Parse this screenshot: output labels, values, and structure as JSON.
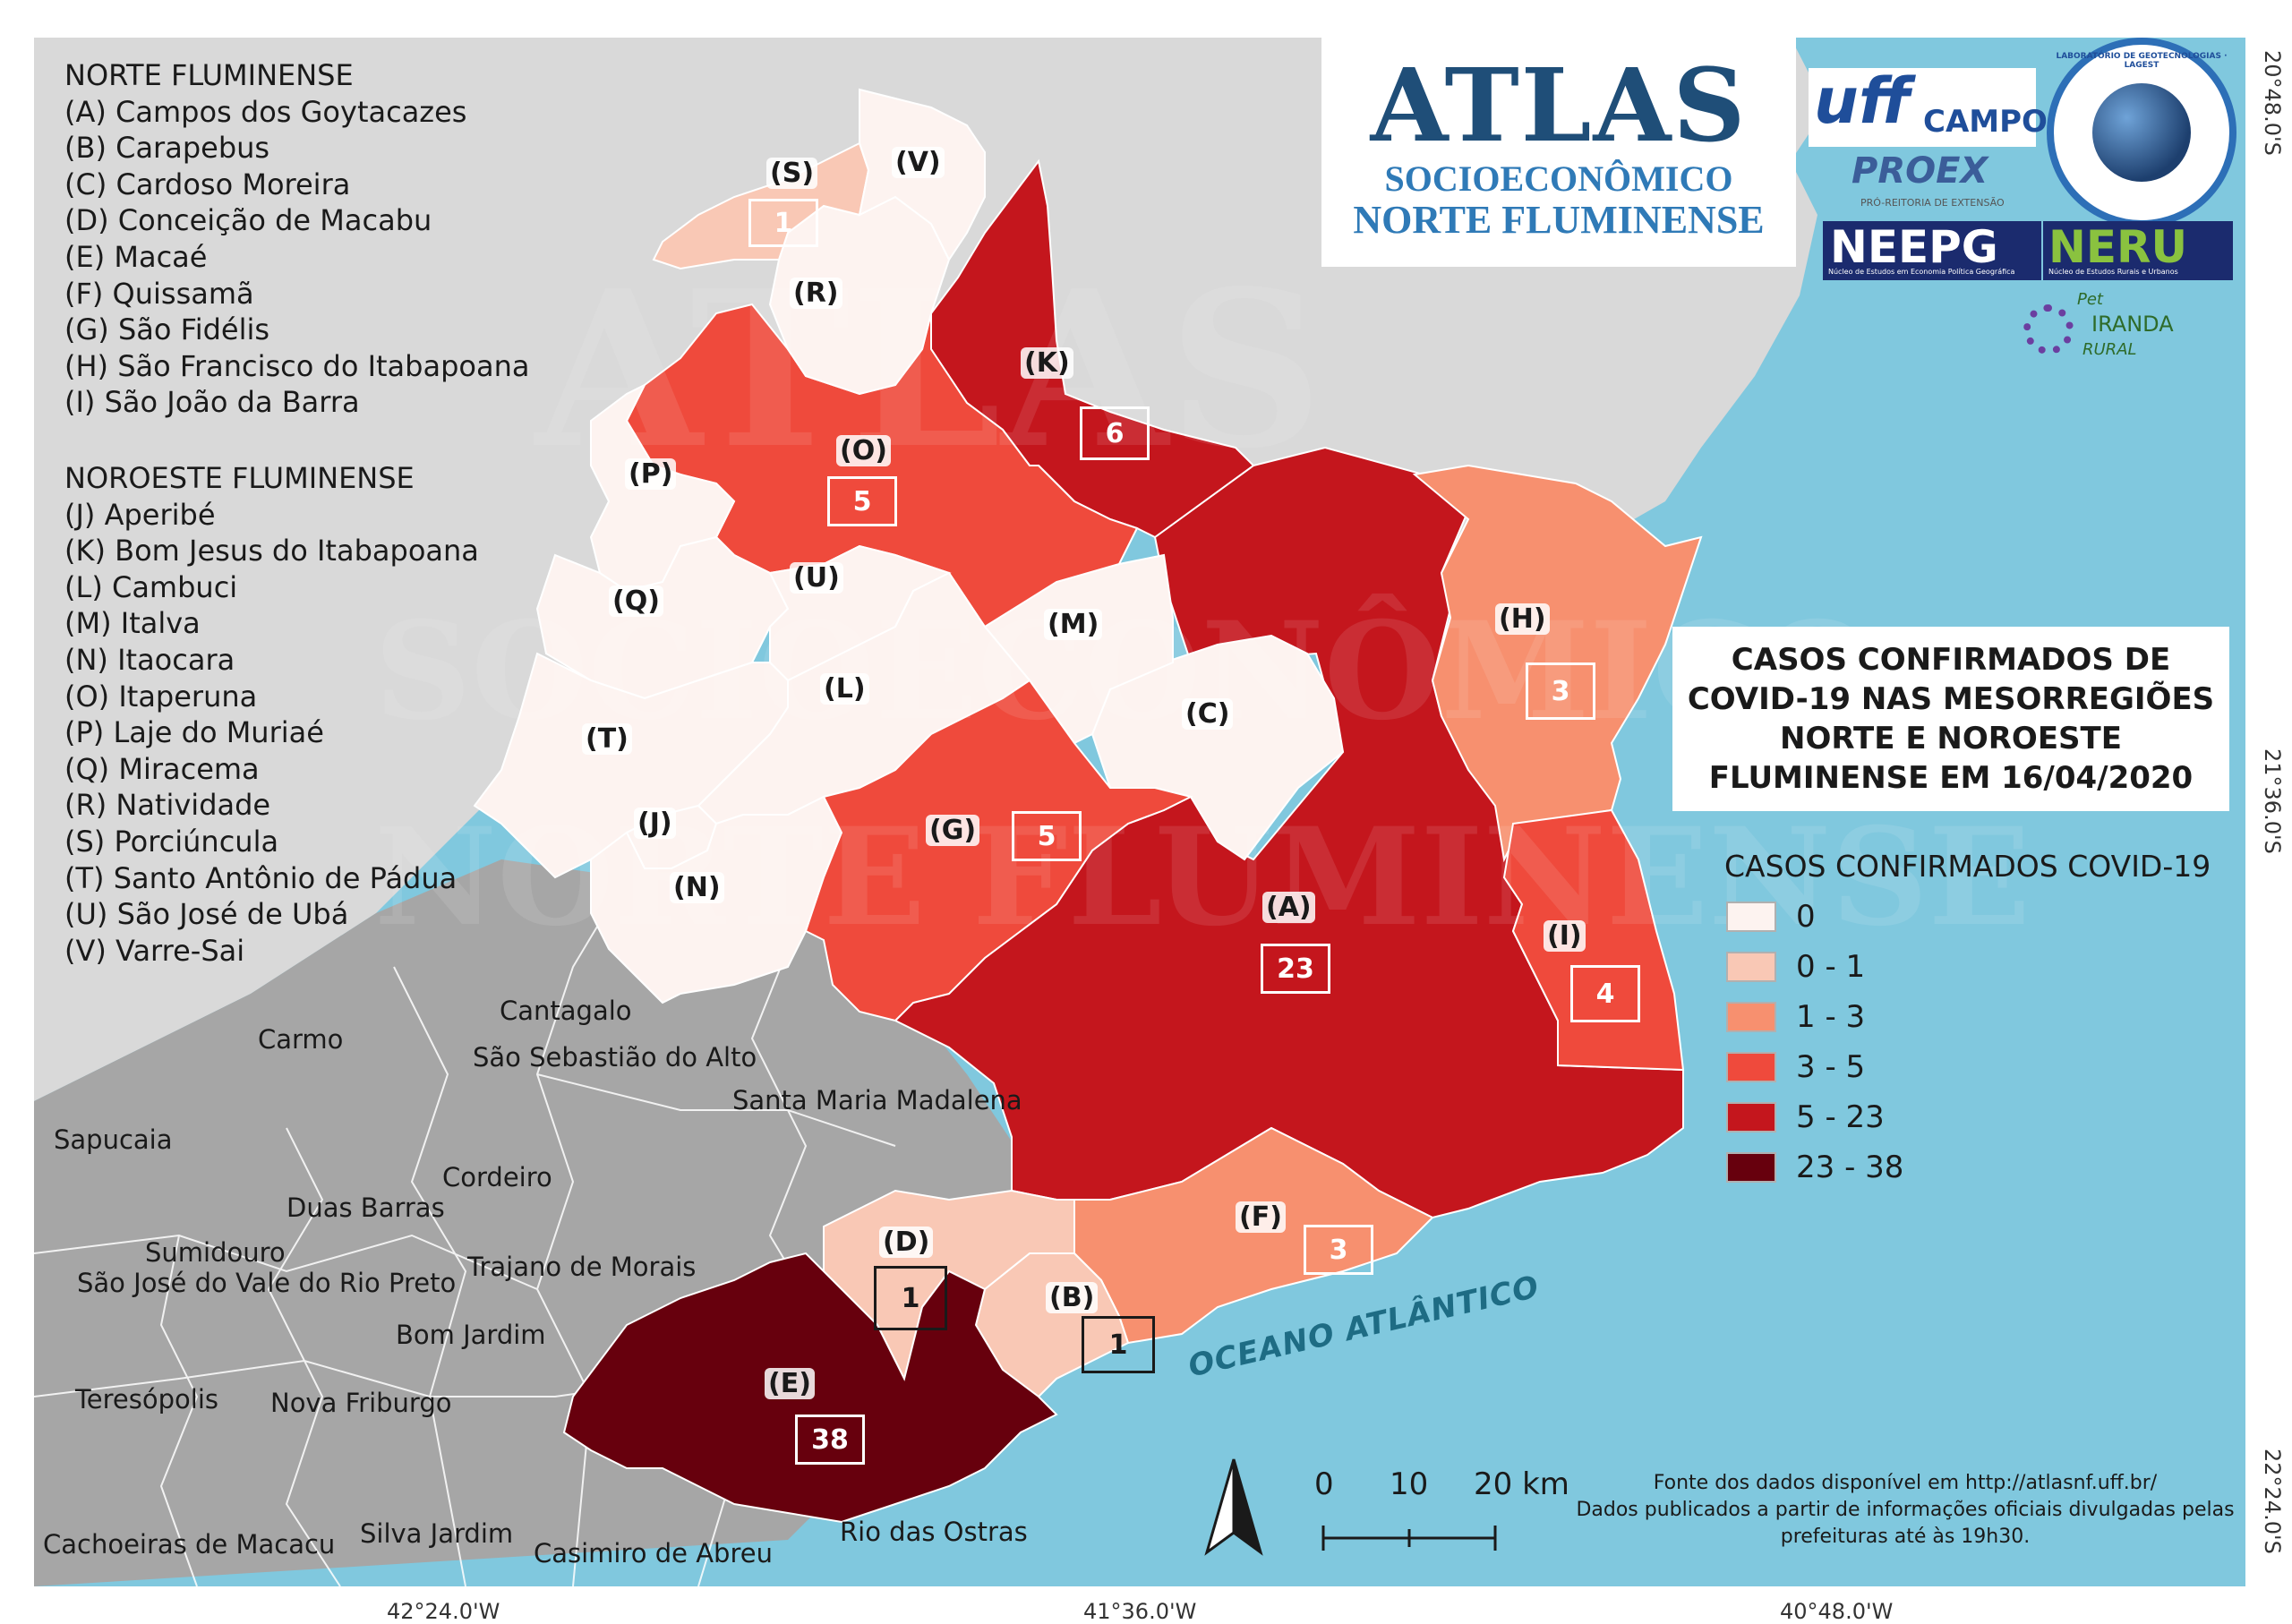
{
  "logo": {
    "title": "ATLAS",
    "subtitle_line1": "SOCIOECONÔMICO",
    "subtitle_line2": "NORTE FLUMINENSE"
  },
  "partner_logos": {
    "uff_campos": "CAMPOS",
    "uff": "uff",
    "proex": "PROEX",
    "proex_sub": "PRÓ-REITORIA DE EXTENSÃO",
    "lagest_ring": "LABORATÓRIO DE GEOTECNOLOGIAS · LAGEST",
    "neepg": "NEEPG",
    "neepg_sub": "Núcleo de Estudos em Economia Política Geográfica",
    "neru": "NERU",
    "neru_sub": "Núcleo de Estudos Rurais e Urbanos",
    "pet_line1": "Pet",
    "pet_line2": "IRANDA",
    "pet_line3": "RURAL"
  },
  "watermark": {
    "line1": "ATLAS",
    "line2": "SOCIOECONÔMICO",
    "line3": "NORTE FLUMINENSE"
  },
  "map_title": "CASOS CONFIRMADOS DE COVID-19 NAS MESORREGIÕES NORTE E NOROESTE FLUMINENSE EM 16/04/2020",
  "norte": {
    "heading": "NORTE FLUMINENSE",
    "items": [
      "(A) Campos dos Goytacazes",
      "(B) Carapebus",
      "(C) Cardoso Moreira",
      "(D) Conceição de Macabu",
      "(E) Macaé",
      "(F) Quissamã",
      "(G) São Fidélis",
      "(H) São Francisco do Itabapoana",
      "(I) São João da Barra"
    ]
  },
  "noroeste": {
    "heading": "NOROESTE FLUMINENSE",
    "items": [
      "(J) Aperibé",
      "(K) Bom Jesus do Itabapoana",
      "(L) Cambuci",
      "(M) Italva",
      "(N) Itaocara",
      "(O) Itaperuna",
      "(P) Laje do Muriaé",
      "(Q) Miracema",
      "(R) Natividade",
      "(S) Porciúncula",
      "(T) Santo Antônio de Pádua",
      "(U) São José de Ubá",
      "(V) Varre-Sai"
    ]
  },
  "legend": {
    "title": "CASOS CONFIRMADOS COVID-19",
    "classes": [
      {
        "label": "0",
        "color": "#fdf3f0"
      },
      {
        "label": "0 - 1",
        "color": "#f9c8b5"
      },
      {
        "label": "1 - 3",
        "color": "#f7906f"
      },
      {
        "label": "3 - 5",
        "color": "#ef4a3c"
      },
      {
        "label": "5 - 23",
        "color": "#c4161d"
      },
      {
        "label": "23 - 38",
        "color": "#67000d"
      }
    ]
  },
  "regions": [
    {
      "code": "(A)",
      "cases": "23"
    },
    {
      "code": "(B)",
      "cases": "1"
    },
    {
      "code": "(C)",
      "cases": ""
    },
    {
      "code": "(D)",
      "cases": "1"
    },
    {
      "code": "(E)",
      "cases": "38"
    },
    {
      "code": "(F)",
      "cases": "3"
    },
    {
      "code": "(G)",
      "cases": "5"
    },
    {
      "code": "(H)",
      "cases": "3"
    },
    {
      "code": "(I)",
      "cases": "4"
    },
    {
      "code": "(J)",
      "cases": ""
    },
    {
      "code": "(K)",
      "cases": "6"
    },
    {
      "code": "(L)",
      "cases": ""
    },
    {
      "code": "(M)",
      "cases": ""
    },
    {
      "code": "(N)",
      "cases": ""
    },
    {
      "code": "(O)",
      "cases": "5"
    },
    {
      "code": "(P)",
      "cases": ""
    },
    {
      "code": "(Q)",
      "cases": ""
    },
    {
      "code": "(R)",
      "cases": ""
    },
    {
      "code": "(S)",
      "cases": "1"
    },
    {
      "code": "(T)",
      "cases": ""
    },
    {
      "code": "(U)",
      "cases": ""
    },
    {
      "code": "(V)",
      "cases": ""
    }
  ],
  "neighbors": [
    "Cantagalo",
    "Carmo",
    "São Sebastião do Alto",
    "Santa Maria Madalena",
    "Sapucaia",
    "Cordeiro",
    "Duas Barras",
    "Sumidouro",
    "São José do Vale do Rio Preto",
    "Trajano de Morais",
    "Bom Jardim",
    "Teresópolis",
    "Nova Friburgo",
    "Cachoeiras de Macacu",
    "Silva Jardim",
    "Casimiro de Abreu",
    "Rio das Ostras"
  ],
  "ocean": "OCEANO ATLÂNTICO",
  "scale": {
    "n0": "0",
    "n1": "10",
    "n2": "20 km"
  },
  "source": {
    "line1": "Fonte dos dados disponível em http://atlasnf.uff.br/",
    "line2": "Dados publicados a partir de informações oficiais divulgadas pelas",
    "line3": "prefeituras até às 19h30."
  },
  "coords": {
    "bottom": [
      "42°24.0'W",
      "41°36.0'W",
      "40°48.0'W"
    ],
    "right": [
      "20°48.0'S",
      "21°36.0'S",
      "22°24.0'S"
    ]
  },
  "colors": {
    "ocean": "#80c8de",
    "outside_light": "#d9d9d9",
    "outside_dark": "#a6a6a6",
    "border_gray": "#ffffff"
  }
}
